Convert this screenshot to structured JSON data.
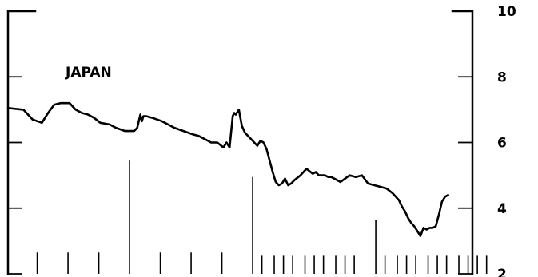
{
  "chart_data": {
    "type": "line",
    "title": "",
    "xlabel": "",
    "ylabel": "",
    "ylim": [
      2,
      10
    ],
    "yticks": [
      2,
      4,
      6,
      8,
      10
    ],
    "ytick_labels": [
      "2",
      "4",
      "6",
      "8",
      "10"
    ],
    "annotations": [
      {
        "text": "JAPAN"
      }
    ],
    "grid": false,
    "series": [
      {
        "label": "JAPAN",
        "color": "#000000",
        "x": [
          0,
          5,
          8,
          11,
          13,
          15,
          17,
          20,
          22,
          24,
          26,
          28,
          30,
          33,
          35,
          38,
          41,
          42,
          43,
          43.5,
          44,
          45,
          47,
          50,
          52,
          54,
          57,
          60,
          62,
          64,
          66,
          68,
          70,
          71,
          72,
          73,
          73.5,
          74,
          75,
          76,
          77,
          79,
          81,
          82,
          83,
          84,
          86,
          87,
          88,
          89,
          90,
          91,
          92,
          93,
          95,
          97,
          99,
          100,
          101,
          102,
          103,
          104,
          105,
          106,
          108,
          111,
          113,
          115,
          117,
          119,
          121,
          123,
          125,
          127,
          128,
          129,
          130,
          131,
          132,
          133,
          134,
          135,
          136,
          137,
          138,
          139,
          140,
          141,
          142,
          143
        ],
        "y": [
          7.05,
          7.0,
          6.7,
          6.6,
          6.9,
          7.15,
          7.2,
          7.2,
          7.0,
          6.9,
          6.85,
          6.75,
          6.6,
          6.55,
          6.45,
          6.35,
          6.35,
          6.45,
          6.85,
          6.65,
          6.8,
          6.8,
          6.75,
          6.65,
          6.55,
          6.45,
          6.35,
          6.25,
          6.2,
          6.1,
          6.0,
          6.0,
          5.85,
          6.0,
          5.85,
          6.8,
          6.9,
          6.85,
          7.0,
          6.5,
          6.3,
          6.1,
          5.9,
          6.05,
          6.0,
          5.8,
          5.1,
          4.8,
          4.7,
          4.75,
          4.9,
          4.7,
          4.75,
          4.85,
          5.0,
          5.2,
          5.05,
          5.1,
          5.0,
          5.0,
          5.0,
          4.95,
          4.95,
          4.9,
          4.8,
          5.0,
          4.95,
          5.0,
          4.75,
          4.7,
          4.65,
          4.6,
          4.45,
          4.25,
          4.05,
          3.9,
          3.7,
          3.55,
          3.45,
          3.3,
          3.15,
          3.4,
          3.35,
          3.4,
          3.4,
          3.45,
          3.8,
          4.2,
          4.35,
          4.4
        ]
      }
    ],
    "time_ticks_long": [
      39.5,
      79.5,
      119.5
    ],
    "time_ticks_short": [
      9.5,
      19.5,
      29.5,
      49.5,
      59.5,
      69.5,
      82.5,
      86.5,
      89.5,
      92.5,
      96.5,
      99.5,
      102.5,
      106.5,
      109.5,
      112.5,
      122.5,
      126.5,
      129.5,
      132.5,
      136.5,
      139.5,
      142.5,
      146.5,
      149.5,
      152.5,
      155.5
    ]
  }
}
